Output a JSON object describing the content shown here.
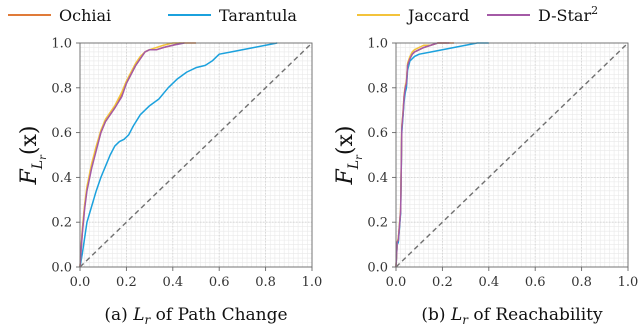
{
  "legend": {
    "entries": [
      {
        "label": "Ochiai",
        "color": "#e07b39"
      },
      {
        "label": "Tarantula",
        "color": "#1ba1dd"
      },
      {
        "label": "Jaccard",
        "color": "#f3c33b"
      },
      {
        "label": "D-Star",
        "sup": "2",
        "color": "#a45aa6"
      }
    ]
  },
  "y_axis_label": {
    "main": "F",
    "sub": "L",
    "subsub": "r",
    "arg": "(x)"
  },
  "chart_data": [
    {
      "type": "line",
      "caption": {
        "prefix": "(a)",
        "math": "L",
        "sub": "r",
        "text": "of Path Change"
      },
      "xlim": [
        0.0,
        1.0
      ],
      "ylim": [
        0.0,
        1.0
      ],
      "xticks": [
        "0.0",
        "0.2",
        "0.4",
        "0.6",
        "0.8",
        "1.0"
      ],
      "yticks": [
        "0.0",
        "0.2",
        "0.4",
        "0.6",
        "0.8",
        "1.0"
      ],
      "grid": true,
      "reference_diagonal": true,
      "series": [
        {
          "name": "Ochiai",
          "color": "#e07b39",
          "x": [
            0,
            0.005,
            0.01,
            0.02,
            0.03,
            0.05,
            0.07,
            0.09,
            0.11,
            0.13,
            0.15,
            0.18,
            0.2,
            0.22,
            0.24,
            0.26,
            0.28,
            0.3,
            0.33,
            0.36,
            0.4,
            0.43,
            0.46,
            0.5
          ],
          "y": [
            0,
            0.08,
            0.16,
            0.27,
            0.35,
            0.45,
            0.53,
            0.6,
            0.65,
            0.68,
            0.71,
            0.77,
            0.82,
            0.86,
            0.9,
            0.93,
            0.96,
            0.97,
            0.97,
            0.98,
            0.99,
            1.0,
            1.0,
            1.0
          ]
        },
        {
          "name": "Tarantula",
          "color": "#1ba1dd",
          "x": [
            0,
            0.01,
            0.02,
            0.03,
            0.05,
            0.07,
            0.09,
            0.11,
            0.13,
            0.15,
            0.17,
            0.19,
            0.21,
            0.23,
            0.26,
            0.3,
            0.34,
            0.38,
            0.42,
            0.46,
            0.5,
            0.54,
            0.57,
            0.6,
            0.65,
            0.7,
            0.75,
            0.8,
            0.85
          ],
          "y": [
            0,
            0.06,
            0.13,
            0.2,
            0.27,
            0.34,
            0.4,
            0.45,
            0.5,
            0.54,
            0.56,
            0.57,
            0.59,
            0.63,
            0.68,
            0.72,
            0.75,
            0.8,
            0.84,
            0.87,
            0.89,
            0.9,
            0.92,
            0.95,
            0.96,
            0.97,
            0.98,
            0.99,
            1.0
          ]
        },
        {
          "name": "Jaccard",
          "color": "#f3c33b",
          "x": [
            0,
            0.005,
            0.01,
            0.02,
            0.03,
            0.05,
            0.07,
            0.09,
            0.11,
            0.13,
            0.15,
            0.18,
            0.2,
            0.22,
            0.24,
            0.26,
            0.28,
            0.3,
            0.33,
            0.36,
            0.4,
            0.43
          ],
          "y": [
            0,
            0.09,
            0.17,
            0.28,
            0.36,
            0.46,
            0.54,
            0.61,
            0.66,
            0.69,
            0.72,
            0.78,
            0.83,
            0.87,
            0.91,
            0.94,
            0.96,
            0.97,
            0.98,
            0.99,
            1.0,
            1.0
          ]
        },
        {
          "name": "D-Star²",
          "color": "#a45aa6",
          "x": [
            0,
            0.005,
            0.01,
            0.02,
            0.03,
            0.05,
            0.07,
            0.09,
            0.11,
            0.13,
            0.15,
            0.18,
            0.2,
            0.22,
            0.24,
            0.26,
            0.28,
            0.3,
            0.33,
            0.36,
            0.4,
            0.45
          ],
          "y": [
            0,
            0.08,
            0.15,
            0.26,
            0.34,
            0.44,
            0.52,
            0.6,
            0.65,
            0.68,
            0.71,
            0.76,
            0.82,
            0.86,
            0.9,
            0.93,
            0.96,
            0.97,
            0.97,
            0.98,
            0.99,
            1.0
          ]
        }
      ]
    },
    {
      "type": "line",
      "caption": {
        "prefix": "(b)",
        "math": "L",
        "sub": "r",
        "text": "of Reachability"
      },
      "xlim": [
        0.0,
        1.0
      ],
      "ylim": [
        0.0,
        1.0
      ],
      "xticks": [
        "0.0",
        "0.2",
        "0.4",
        "0.6",
        "0.8",
        "1.0"
      ],
      "yticks": [
        "0.0",
        "0.2",
        "0.4",
        "0.6",
        "0.8",
        "1.0"
      ],
      "grid": true,
      "reference_diagonal": true,
      "series": [
        {
          "name": "Ochiai",
          "color": "#e07b39",
          "x": [
            0,
            0.005,
            0.01,
            0.02,
            0.025,
            0.03,
            0.035,
            0.04,
            0.045,
            0.05,
            0.06,
            0.07,
            0.08,
            0.1,
            0.12,
            0.15,
            0.18,
            0.2,
            0.22,
            0.25
          ],
          "y": [
            0,
            0.11,
            0.12,
            0.25,
            0.62,
            0.68,
            0.76,
            0.8,
            0.82,
            0.9,
            0.93,
            0.95,
            0.96,
            0.97,
            0.98,
            0.99,
            1.0,
            1.0,
            1.0,
            1.0
          ]
        },
        {
          "name": "Tarantula",
          "color": "#1ba1dd",
          "x": [
            0,
            0.005,
            0.01,
            0.02,
            0.025,
            0.03,
            0.035,
            0.04,
            0.045,
            0.05,
            0.06,
            0.07,
            0.08,
            0.1,
            0.15,
            0.2,
            0.25,
            0.3,
            0.35,
            0.4
          ],
          "y": [
            0,
            0.1,
            0.11,
            0.24,
            0.6,
            0.67,
            0.74,
            0.78,
            0.8,
            0.88,
            0.92,
            0.93,
            0.94,
            0.95,
            0.96,
            0.97,
            0.98,
            0.99,
            1.0,
            1.0
          ]
        },
        {
          "name": "Jaccard",
          "color": "#f3c33b",
          "x": [
            0,
            0.005,
            0.01,
            0.02,
            0.025,
            0.03,
            0.035,
            0.04,
            0.045,
            0.05,
            0.06,
            0.07,
            0.08,
            0.1,
            0.12,
            0.15,
            0.18,
            0.2,
            0.22
          ],
          "y": [
            0,
            0.11,
            0.13,
            0.26,
            0.63,
            0.69,
            0.77,
            0.81,
            0.83,
            0.91,
            0.94,
            0.96,
            0.97,
            0.98,
            0.99,
            0.99,
            1.0,
            1.0,
            1.0
          ]
        },
        {
          "name": "D-Star²",
          "color": "#a45aa6",
          "x": [
            0,
            0.005,
            0.01,
            0.02,
            0.025,
            0.03,
            0.035,
            0.04,
            0.045,
            0.05,
            0.06,
            0.07,
            0.08,
            0.1,
            0.12,
            0.15,
            0.18,
            0.2,
            0.23
          ],
          "y": [
            0,
            0.11,
            0.12,
            0.25,
            0.62,
            0.68,
            0.76,
            0.8,
            0.82,
            0.9,
            0.93,
            0.95,
            0.96,
            0.97,
            0.98,
            0.99,
            1.0,
            1.0,
            1.0
          ]
        }
      ]
    }
  ]
}
